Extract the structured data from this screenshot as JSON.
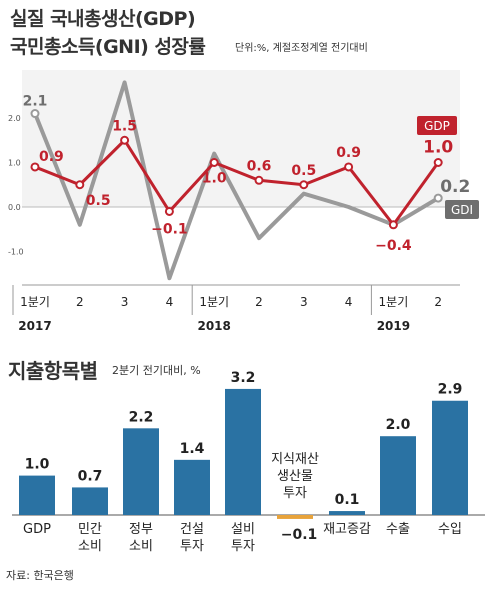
{
  "title_line1": "실질 국내총생산(GDP)",
  "title_line2": "국민총소득(GNI) 성장률",
  "unit_note": "단위:%, 계절조정계열 전기대비",
  "bar_title": "지출항목별",
  "bar_note": "2분기 전기대비, %",
  "source": "자료: 한국은행",
  "colors": {
    "gdp": "#c0222d",
    "gdi": "#9a9a9a",
    "bar": "#2a72a3",
    "bar_negative": "#e8a33a"
  },
  "chart_data": [
    {
      "type": "line",
      "x_labels": [
        "1분기",
        "2",
        "3",
        "4",
        "1분기",
        "2",
        "3",
        "4",
        "1분기",
        "2"
      ],
      "years": [
        {
          "label": "2017",
          "index": 0
        },
        {
          "label": "2018",
          "index": 4
        },
        {
          "label": "2019",
          "index": 8
        }
      ],
      "ylim": [
        -2.0,
        2.5
      ],
      "yticks": [
        "2.0",
        "1.0",
        "0.0",
        "-1.0"
      ],
      "grid": false,
      "series": [
        {
          "name": "GDP",
          "values": [
            0.9,
            0.5,
            1.5,
            -0.1,
            1.0,
            0.6,
            0.5,
            0.9,
            -0.4,
            1.0
          ],
          "labels": [
            "0.9",
            "0.5",
            "1.5",
            "−0.1",
            "1.0",
            "0.6",
            "0.5",
            "0.9",
            "−0.4",
            "1.0"
          ]
        },
        {
          "name": "GDI",
          "values": [
            2.1,
            -0.4,
            2.8,
            -1.6,
            1.2,
            -0.7,
            0.3,
            0.0,
            -0.4,
            0.2
          ],
          "labels": [
            "2.1",
            "",
            "",
            "",
            "",
            "",
            "",
            "",
            "",
            "0.2"
          ]
        }
      ]
    },
    {
      "type": "bar",
      "title": "지출항목별",
      "categories": [
        "GDP",
        "민간\n소비",
        "정부\n소비",
        "건설\n투자",
        "설비\n투자",
        "지식재산\n생산물\n투자",
        "재고증감",
        "수출",
        "수입"
      ],
      "values": [
        1.0,
        0.7,
        2.2,
        1.4,
        3.2,
        -0.1,
        0.1,
        2.0,
        2.9
      ],
      "labels": [
        "1.0",
        "0.7",
        "2.2",
        "1.4",
        "3.2",
        "−0.1",
        "0.1",
        "2.0",
        "2.9"
      ]
    }
  ]
}
